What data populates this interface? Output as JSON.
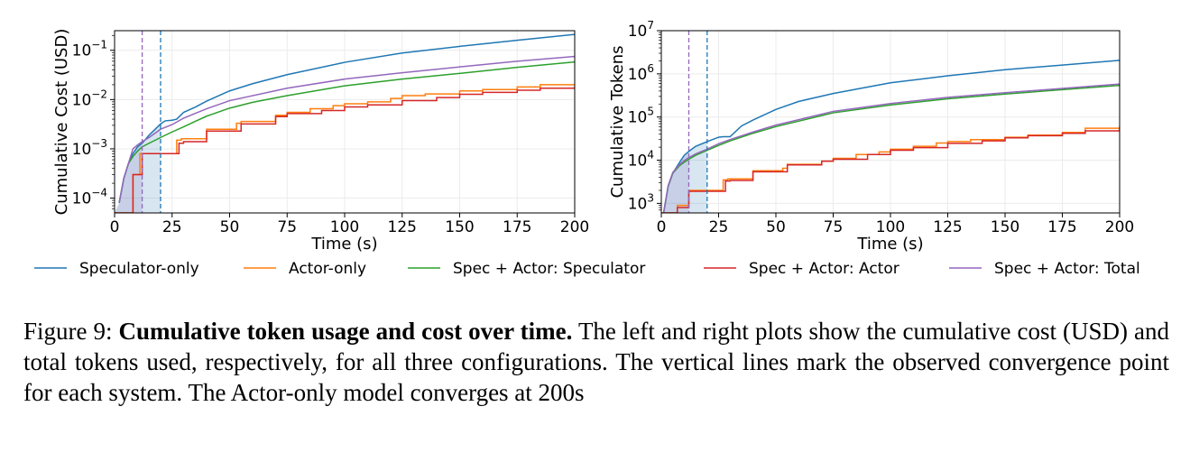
{
  "legend": {
    "entries": [
      {
        "label": "Speculator-only",
        "color": "#1f77b4"
      },
      {
        "label": "Actor-only",
        "color": "#ff7f0e"
      },
      {
        "label": "Spec + Actor: Speculator",
        "color": "#2ca02c"
      },
      {
        "label": "Spec + Actor: Actor",
        "color": "#d62728"
      },
      {
        "label": "Spec + Actor: Total",
        "color": "#9467bd"
      }
    ]
  },
  "caption": {
    "prefix": "Figure 9: ",
    "bold": "Cumulative token usage and cost over time.",
    "rest": " The left and right plots show the cumulative cost (USD) and total tokens used, respectively, for all three configurations. The vertical lines mark the observed convergence point for each system. The Actor-only model converges at 200s"
  },
  "chart_data": [
    {
      "type": "line",
      "xlabel": "Time (s)",
      "ylabel": "Cumulative Cost (USD)",
      "yscale": "log",
      "xlim": [
        0,
        200
      ],
      "ylim": [
        5e-05,
        0.25
      ],
      "xticks": [
        0,
        25,
        50,
        75,
        100,
        125,
        150,
        175,
        200
      ],
      "yticks": [
        {
          "value": 0.0001,
          "base": "10",
          "exp": "−4"
        },
        {
          "value": 0.001,
          "base": "10",
          "exp": "−3"
        },
        {
          "value": 0.01,
          "base": "10",
          "exp": "−2"
        },
        {
          "value": 0.1,
          "base": "10",
          "exp": "−1"
        }
      ],
      "grid": true,
      "vlines": [
        {
          "x": 12,
          "color": "#9467bd",
          "style": "dashed"
        },
        {
          "x": 20,
          "color": "#1f77b4",
          "style": "dashed"
        }
      ],
      "shaded_regions": [
        {
          "x0": 0,
          "x1": 12,
          "color": "#9467bd"
        },
        {
          "x0": 0,
          "x1": 20,
          "color": "#1f77b4"
        }
      ],
      "series": [
        {
          "name": "Speculator-only",
          "color": "#1f77b4",
          "step": false,
          "x": [
            2,
            4,
            6,
            8,
            10,
            12,
            15,
            18,
            20,
            22,
            25,
            27,
            30,
            35,
            40,
            50,
            60,
            75,
            100,
            125,
            150,
            175,
            200
          ],
          "y": [
            8e-05,
            0.00025,
            0.0005,
            0.0008,
            0.0011,
            0.0013,
            0.0019,
            0.0026,
            0.0032,
            0.0037,
            0.0038,
            0.004,
            0.0055,
            0.007,
            0.0093,
            0.015,
            0.021,
            0.032,
            0.057,
            0.088,
            0.12,
            0.16,
            0.21
          ]
        },
        {
          "name": "Actor-only",
          "color": "#ff7f0e",
          "step": true,
          "x": [
            0,
            8,
            11,
            18,
            27,
            29,
            40,
            53,
            55,
            70,
            75,
            85,
            95,
            100,
            110,
            120,
            125,
            135,
            150,
            160,
            175,
            185,
            200
          ],
          "y": [
            5e-05,
            0.0003,
            0.0008,
            0.0008,
            0.0015,
            0.0016,
            0.0025,
            0.0033,
            0.0036,
            0.0048,
            0.0055,
            0.0065,
            0.0075,
            0.0082,
            0.009,
            0.0105,
            0.012,
            0.013,
            0.015,
            0.016,
            0.018,
            0.02,
            0.021
          ]
        },
        {
          "name": "Spec + Actor: Speculator",
          "color": "#2ca02c",
          "step": false,
          "x": [
            2,
            4,
            6,
            8,
            10,
            12,
            15,
            20,
            25,
            30,
            35,
            40,
            50,
            60,
            75,
            100,
            125,
            150,
            175,
            200
          ],
          "y": [
            8e-05,
            0.00025,
            0.0005,
            0.0007,
            0.0009,
            0.0011,
            0.0013,
            0.0017,
            0.0022,
            0.0028,
            0.0036,
            0.0046,
            0.0067,
            0.0088,
            0.012,
            0.019,
            0.026,
            0.034,
            0.045,
            0.058
          ]
        },
        {
          "name": "Spec + Actor: Actor",
          "color": "#d62728",
          "step": true,
          "x": [
            0,
            8,
            12,
            18,
            28,
            30,
            40,
            55,
            70,
            75,
            90,
            100,
            110,
            125,
            140,
            150,
            160,
            175,
            185,
            200
          ],
          "y": [
            5e-05,
            0.0003,
            0.0008,
            0.0008,
            0.0013,
            0.0014,
            0.0023,
            0.0032,
            0.0045,
            0.0052,
            0.006,
            0.0071,
            0.0078,
            0.0095,
            0.011,
            0.0128,
            0.014,
            0.0155,
            0.017,
            0.0185
          ]
        },
        {
          "name": "Spec + Actor: Total",
          "color": "#9467bd",
          "step": false,
          "x": [
            2,
            4,
            6,
            8,
            10,
            12,
            15,
            20,
            25,
            30,
            40,
            50,
            75,
            100,
            125,
            150,
            175,
            200
          ],
          "y": [
            8e-05,
            0.00025,
            0.0005,
            0.001,
            0.0012,
            0.0014,
            0.0017,
            0.0025,
            0.0031,
            0.0042,
            0.0065,
            0.0095,
            0.017,
            0.026,
            0.035,
            0.046,
            0.06,
            0.075
          ]
        }
      ]
    },
    {
      "type": "line",
      "xlabel": "Time (s)",
      "ylabel": "Cumulative Tokens",
      "yscale": "log",
      "xlim": [
        0,
        200
      ],
      "ylim": [
        600,
        10000000
      ],
      "xticks": [
        0,
        25,
        50,
        75,
        100,
        125,
        150,
        175,
        200
      ],
      "yticks": [
        {
          "value": 1000,
          "base": "10",
          "exp": "3"
        },
        {
          "value": 10000,
          "base": "10",
          "exp": "4"
        },
        {
          "value": 100000,
          "base": "10",
          "exp": "5"
        },
        {
          "value": 1000000,
          "base": "10",
          "exp": "6"
        },
        {
          "value": 10000000,
          "base": "10",
          "exp": "7"
        }
      ],
      "grid": true,
      "vlines": [
        {
          "x": 12,
          "color": "#9467bd",
          "style": "dashed"
        },
        {
          "x": 20,
          "color": "#1f77b4",
          "style": "dashed"
        }
      ],
      "shaded_regions": [
        {
          "x0": 0,
          "x1": 12,
          "color": "#9467bd"
        },
        {
          "x0": 0,
          "x1": 20,
          "color": "#1f77b4"
        }
      ],
      "series": [
        {
          "name": "Speculator-only",
          "color": "#1f77b4",
          "step": false,
          "x": [
            1,
            3,
            5,
            8,
            10,
            12,
            15,
            20,
            25,
            27,
            30,
            35,
            40,
            50,
            60,
            75,
            100,
            125,
            150,
            175,
            200
          ],
          "y": [
            600,
            2500,
            5000,
            9000,
            13000,
            16000,
            21000,
            27000,
            34000,
            35000,
            35000,
            62000,
            85000,
            150000,
            230000,
            350000,
            620000,
            900000,
            1250000,
            1600000,
            2050000
          ]
        },
        {
          "name": "Actor-only",
          "color": "#ff7f0e",
          "step": true,
          "x": [
            0,
            7,
            12,
            20,
            27,
            29,
            40,
            53,
            55,
            70,
            75,
            85,
            95,
            100,
            110,
            120,
            125,
            135,
            150,
            160,
            175,
            185,
            200
          ],
          "y": [
            600,
            900,
            2000,
            2000,
            3500,
            3700,
            5700,
            6500,
            8000,
            9500,
            11000,
            13500,
            15500,
            18000,
            21000,
            25000,
            27000,
            30000,
            34000,
            38000,
            44000,
            55000,
            62000
          ]
        },
        {
          "name": "Spec + Actor: Speculator",
          "color": "#2ca02c",
          "step": false,
          "x": [
            1,
            3,
            5,
            8,
            10,
            12,
            15,
            20,
            25,
            30,
            40,
            50,
            75,
            100,
            125,
            150,
            175,
            200
          ],
          "y": [
            600,
            2500,
            5000,
            7500,
            9000,
            10500,
            13000,
            17000,
            22000,
            28000,
            42000,
            60000,
            125000,
            190000,
            265000,
            340000,
            430000,
            540000
          ]
        },
        {
          "name": "Spec + Actor: Actor",
          "color": "#d62728",
          "step": true,
          "x": [
            0,
            7,
            12,
            20,
            28,
            30,
            40,
            55,
            70,
            75,
            90,
            100,
            110,
            125,
            140,
            150,
            160,
            175,
            185,
            200
          ],
          "y": [
            600,
            800,
            1900,
            1900,
            3300,
            3400,
            5400,
            7800,
            9500,
            10500,
            13500,
            17000,
            19500,
            24500,
            28000,
            33000,
            37000,
            42000,
            48000,
            56000
          ]
        },
        {
          "name": "Spec + Actor: Total",
          "color": "#9467bd",
          "step": false,
          "x": [
            1,
            3,
            5,
            8,
            10,
            12,
            15,
            20,
            25,
            30,
            40,
            50,
            75,
            100,
            125,
            150,
            175,
            200
          ],
          "y": [
            600,
            2600,
            5200,
            8000,
            9800,
            11500,
            14000,
            18000,
            24000,
            30000,
            45000,
            65000,
            135000,
            205000,
            285000,
            365000,
            460000,
            580000
          ]
        }
      ]
    }
  ]
}
